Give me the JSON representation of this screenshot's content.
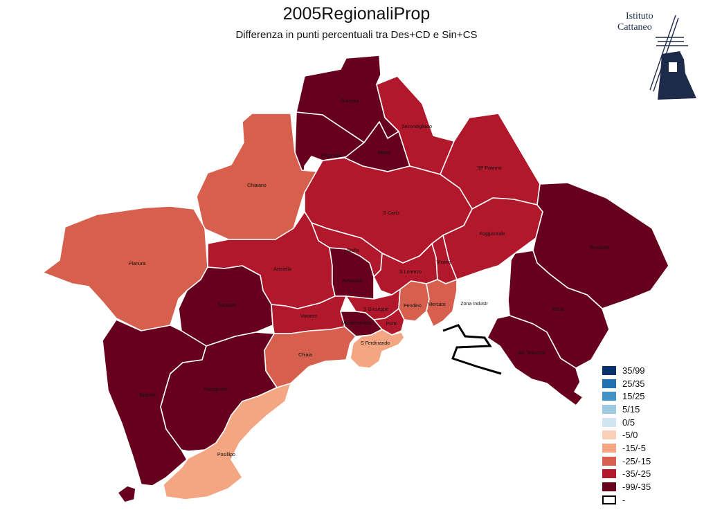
{
  "title": "2005RegionaliProp",
  "subtitle": "Differenza in punti percentuali tra Des+CD e Sin+CS",
  "logo": {
    "line1": "Istituto",
    "line2": "Cattaneo"
  },
  "legend": [
    {
      "label": "35/99",
      "color": "#08306b"
    },
    {
      "label": "25/35",
      "color": "#2171b5"
    },
    {
      "label": "15/25",
      "color": "#4292c6"
    },
    {
      "label": "5/15",
      "color": "#9ecae1"
    },
    {
      "label": "0/5",
      "color": "#d1e4f1"
    },
    {
      "label": "-5/0",
      "color": "#fbd0b8"
    },
    {
      "label": "-15/-5",
      "color": "#f4a582"
    },
    {
      "label": "-25/-15",
      "color": "#d6604d"
    },
    {
      "label": "-35/-25",
      "color": "#b2182b"
    },
    {
      "label": "-99/-35",
      "color": "#67001f"
    },
    {
      "label": "-",
      "color": "#ffffff"
    }
  ],
  "zones": [
    {
      "name": "Scampia",
      "class": "-99/-35"
    },
    {
      "name": "Piscinola",
      "class": "-99/-35"
    },
    {
      "name": "Miano",
      "class": "-99/-35"
    },
    {
      "name": "Secondigliano",
      "class": "-35/-25"
    },
    {
      "name": "SP Paterno",
      "class": "-35/-25"
    },
    {
      "name": "Chiaiano",
      "class": "-25/-15"
    },
    {
      "name": "S Carlo",
      "class": "-35/-25"
    },
    {
      "name": "Poggioreale",
      "class": "-35/-25"
    },
    {
      "name": "Ponticelli",
      "class": "-99/-35"
    },
    {
      "name": "Pianura",
      "class": "-25/-15"
    },
    {
      "name": "Stella",
      "class": "-35/-25"
    },
    {
      "name": "Arenella",
      "class": "-35/-25"
    },
    {
      "name": "S Lorenzo",
      "class": "-35/-25"
    },
    {
      "name": "Vicaria",
      "class": "-35/-25"
    },
    {
      "name": "Avvocata",
      "class": "-99/-35"
    },
    {
      "name": "Soccavo",
      "class": "-99/-35"
    },
    {
      "name": "Vomero",
      "class": "-35/-25"
    },
    {
      "name": "S Giuseppe",
      "class": "-35/-25"
    },
    {
      "name": "Pendino",
      "class": "-25/-15"
    },
    {
      "name": "Mercato",
      "class": "-25/-15"
    },
    {
      "name": "Zona Industr",
      "class": "-"
    },
    {
      "name": "Barra",
      "class": "-99/-35"
    },
    {
      "name": "Montecalvario",
      "class": "-99/-35"
    },
    {
      "name": "Porto",
      "class": "-35/-25"
    },
    {
      "name": "S Ferdinando",
      "class": "-15/-5"
    },
    {
      "name": "SG Teduccio",
      "class": "-99/-35"
    },
    {
      "name": "Chiaia",
      "class": "-25/-15"
    },
    {
      "name": "Bagnoli",
      "class": "-99/-35"
    },
    {
      "name": "Fuorigrotta",
      "class": "-99/-35"
    },
    {
      "name": "Posillipo",
      "class": "-15/-5"
    }
  ]
}
